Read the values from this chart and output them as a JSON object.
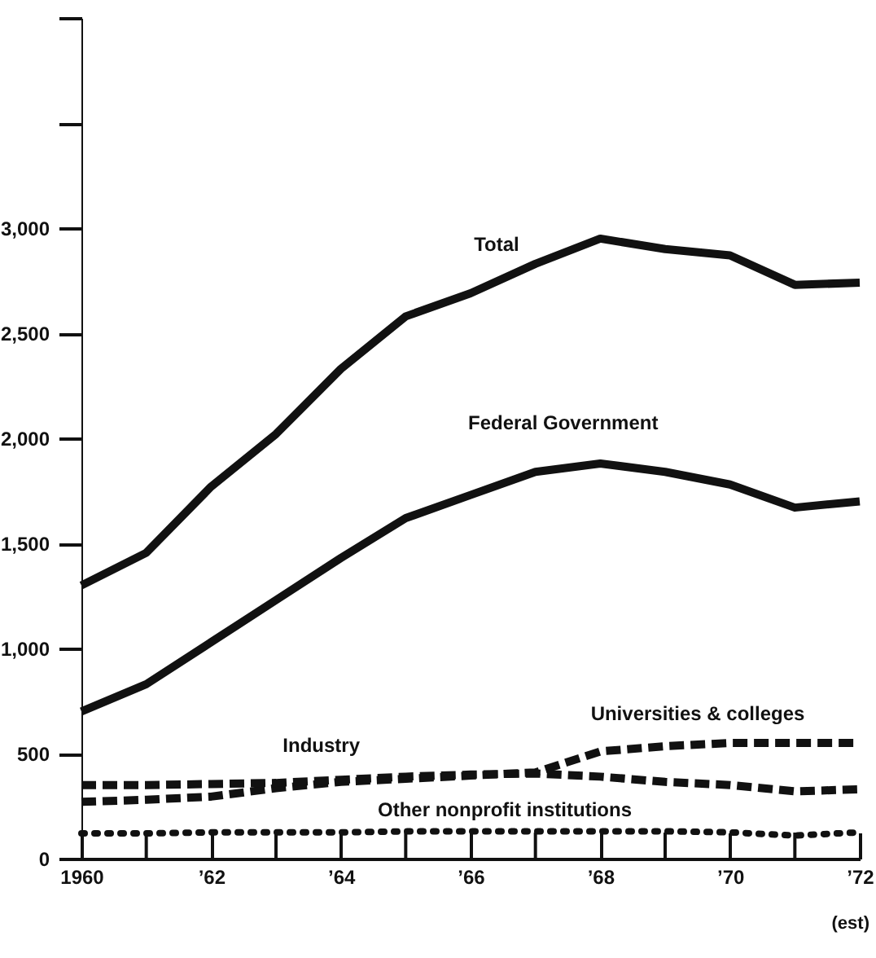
{
  "chart_data": {
    "type": "line",
    "x": [
      1960,
      1961,
      1962,
      1963,
      1964,
      1965,
      1966,
      1967,
      1968,
      1969,
      1970,
      1971,
      1972
    ],
    "series": [
      {
        "name": "Total",
        "color": "#111111",
        "line_style": "solid",
        "values": [
          1300,
          1455,
          1770,
          2020,
          2330,
          2580,
          2690,
          2830,
          2950,
          2900,
          2870,
          2730,
          2740
        ]
      },
      {
        "name": "Federal Government",
        "color": "#111111",
        "line_style": "solid",
        "values": [
          700,
          830,
          1030,
          1230,
          1430,
          1620,
          1730,
          1840,
          1880,
          1840,
          1780,
          1670,
          1700
        ]
      },
      {
        "name": "Universities & colleges",
        "color": "#111111",
        "line_style": "dashed",
        "values": [
          270,
          280,
          295,
          335,
          365,
          380,
          395,
          410,
          510,
          535,
          550,
          550,
          550
        ]
      },
      {
        "name": "Industry",
        "color": "#111111",
        "line_style": "dashed",
        "values": [
          350,
          350,
          355,
          360,
          375,
          390,
          400,
          405,
          390,
          365,
          350,
          320,
          330
        ]
      },
      {
        "name": "Other nonprofit institutions",
        "color": "#111111",
        "line_style": "dotted",
        "values": [
          120,
          120,
          125,
          125,
          125,
          130,
          130,
          130,
          130,
          130,
          125,
          110,
          125
        ]
      }
    ],
    "xlim": [
      1960,
      1972
    ],
    "xticks": [
      {
        "value": 1960,
        "label": "1960"
      },
      {
        "value": 1961,
        "label": null
      },
      {
        "value": 1962,
        "label": "’62"
      },
      {
        "value": 1963,
        "label": null
      },
      {
        "value": 1964,
        "label": "’64"
      },
      {
        "value": 1965,
        "label": null
      },
      {
        "value": 1966,
        "label": "’66"
      },
      {
        "value": 1967,
        "label": null
      },
      {
        "value": 1968,
        "label": "’68"
      },
      {
        "value": 1969,
        "label": null
      },
      {
        "value": 1970,
        "label": "’70"
      },
      {
        "value": 1971,
        "label": null
      },
      {
        "value": 1972,
        "label": "’72"
      }
    ],
    "ylim": [
      0,
      4000
    ],
    "yticks": [
      0,
      500,
      {
        "value": 1000,
        "label": "1,000"
      },
      {
        "value": 1500,
        "label": "1,500"
      },
      {
        "value": 2000,
        "label": "2,000"
      },
      {
        "value": 2500,
        "label": "2,500"
      },
      {
        "value": 3000,
        "label": "3,000"
      },
      {
        "value": 3500,
        "label": null
      },
      {
        "value": 4000,
        "label": null
      }
    ],
    "annotations": [
      "(est)"
    ]
  }
}
